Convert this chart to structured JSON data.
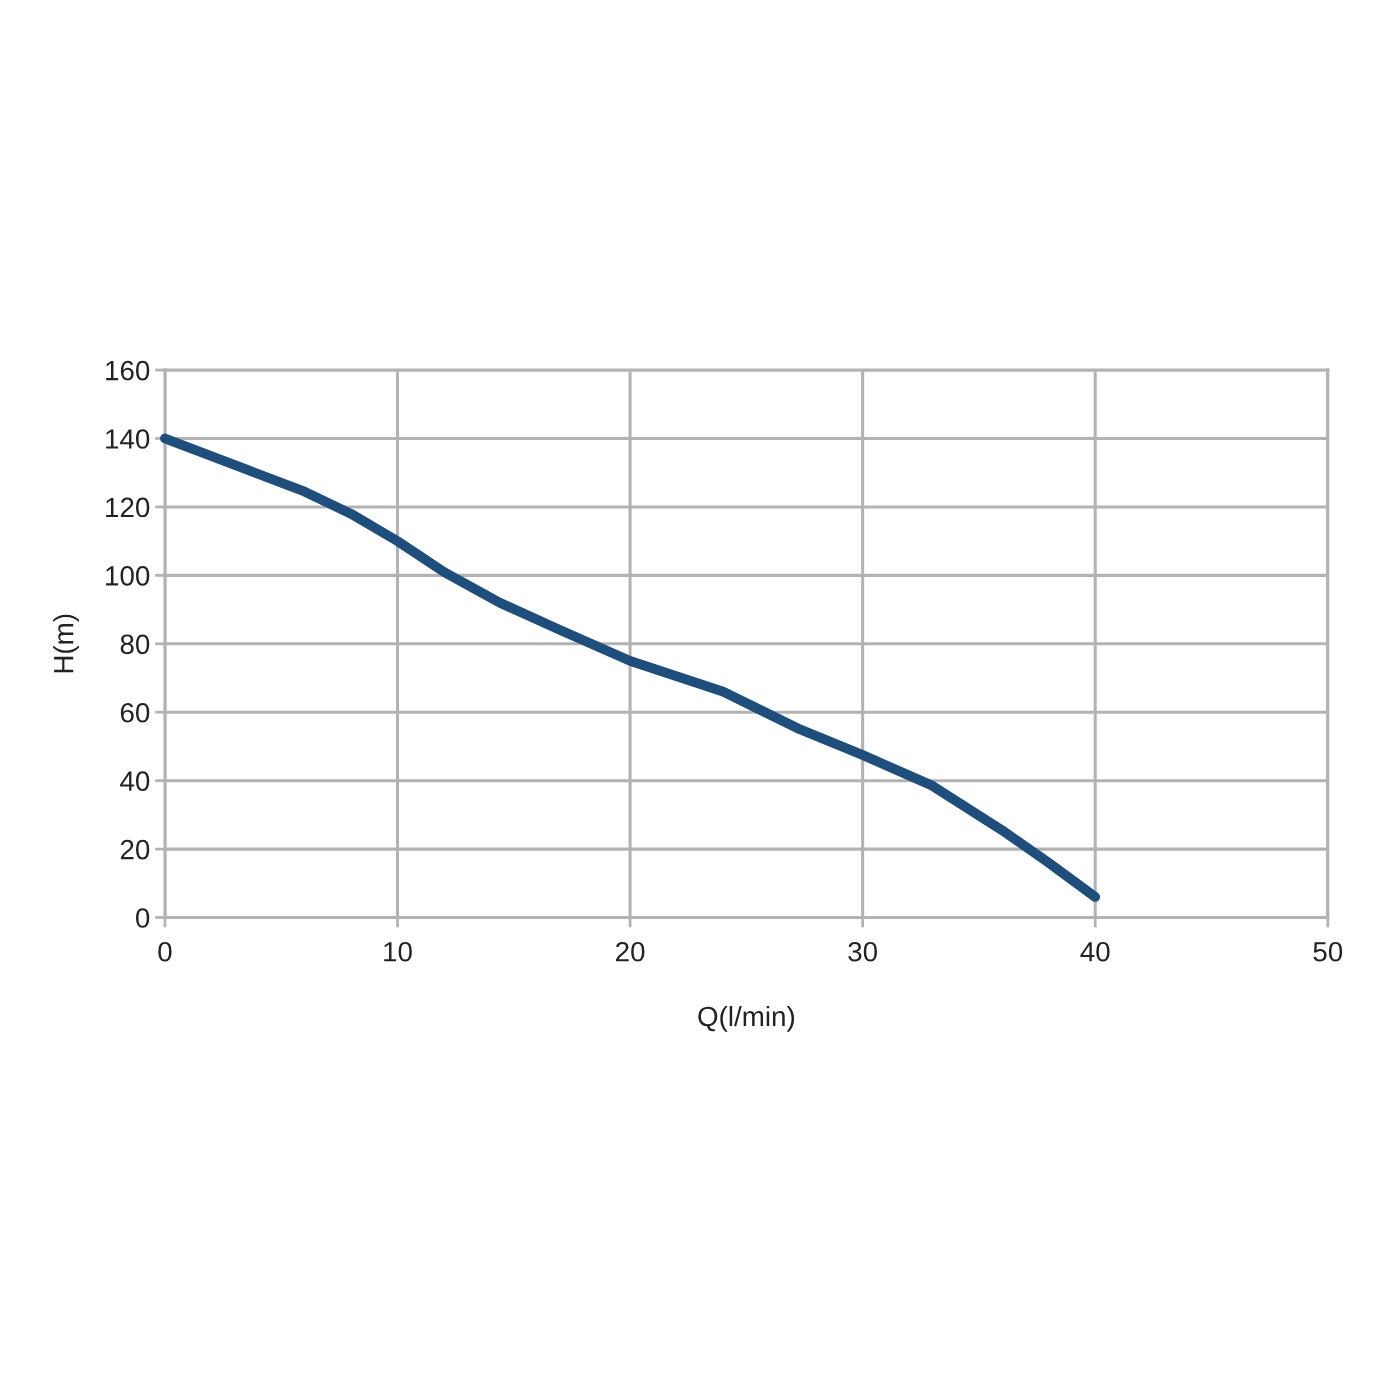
{
  "chart_data": {
    "type": "line",
    "xlabel": "Q(l/min)",
    "ylabel": "H(m)",
    "x": [
      0,
      3.6,
      6,
      8,
      10,
      12,
      14.4,
      17,
      20,
      24,
      27.3,
      30,
      33,
      36,
      38,
      40
    ],
    "series": [
      {
        "color": "#1f4e7c",
        "values": [
          140,
          130.7,
          124.5,
          118,
          110,
          101,
          92,
          84,
          75,
          66,
          55,
          47.5,
          38.5,
          25.5,
          16,
          6
        ]
      }
    ],
    "xlim": [
      0,
      50
    ],
    "xticks": [
      0,
      10,
      20,
      30,
      40,
      50
    ],
    "ylim": [
      0,
      160
    ],
    "yticks": [
      0,
      20,
      40,
      60,
      80,
      100,
      120,
      140,
      160
    ],
    "grid": true,
    "marker": "none",
    "line_style": "solid",
    "legend": false
  }
}
